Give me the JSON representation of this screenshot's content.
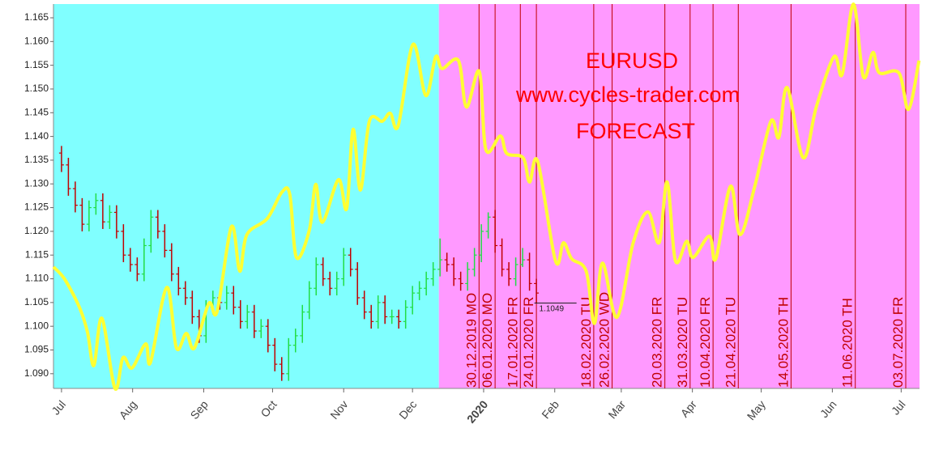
{
  "chart_data": {
    "type": "candlestick",
    "annotations": [
      "EURUSD",
      "www.cycles-trader.com",
      "FORECAST"
    ],
    "annotation_color": "#ff0000",
    "xlim": [
      -3.5,
      374
    ],
    "ylim": [
      1.0869,
      1.1679
    ],
    "xticks": [
      {
        "value": 0,
        "label": "Jul"
      },
      {
        "value": 31,
        "label": "Aug"
      },
      {
        "value": 62,
        "label": "Sep"
      },
      {
        "value": 92,
        "label": "Oct"
      },
      {
        "value": 123,
        "label": "Nov"
      },
      {
        "value": 153,
        "label": "Dec"
      },
      {
        "value": 184,
        "label": "2020",
        "color": "#8b0000"
      },
      {
        "value": 215,
        "label": "Feb"
      },
      {
        "value": 244,
        "label": "Mar"
      },
      {
        "value": 275,
        "label": "Apr"
      },
      {
        "value": 305,
        "label": "May"
      },
      {
        "value": 336,
        "label": "Jun"
      },
      {
        "value": 366,
        "label": "Jul"
      }
    ],
    "yticks": [
      {
        "value": 1.09,
        "label": "1.090"
      },
      1.095,
      {
        "value": 1.1,
        "label": "1.100"
      },
      1.105,
      {
        "value": 1.11,
        "label": "1.110"
      },
      1.115,
      {
        "value": 1.12,
        "label": "1.120"
      },
      1.125,
      {
        "value": 1.13,
        "label": "1.130"
      },
      1.135,
      {
        "value": 1.14,
        "label": "1.140"
      },
      1.145,
      {
        "value": 1.15,
        "label": "1.150"
      },
      1.155,
      {
        "value": 1.16,
        "label": "1.160"
      },
      1.165
    ],
    "regions": [
      {
        "from": -3.5,
        "to": 164.5,
        "color": "#80ffff"
      },
      {
        "from": 164.5,
        "to": 374,
        "color": "#ff99ff"
      }
    ],
    "up_color": "#22dd44",
    "down_color": "#c00000",
    "bars": {
      "x": [
        0,
        3,
        6,
        9,
        12,
        15,
        18,
        21,
        24,
        27,
        30,
        33,
        36,
        39,
        42,
        45,
        48,
        51,
        54,
        57,
        60,
        63,
        66,
        69,
        72,
        75,
        78,
        81,
        84,
        87,
        90,
        93,
        96,
        99,
        102,
        105,
        108,
        111,
        114,
        117,
        120,
        123,
        126,
        129,
        132,
        135,
        138,
        141,
        144,
        147,
        150,
        153,
        156,
        159,
        162,
        165,
        168,
        171,
        174,
        177,
        180,
        183,
        186,
        189,
        192,
        195,
        198,
        201,
        204,
        207
      ],
      "open": [
        1.1365,
        1.134,
        1.129,
        1.1255,
        1.1215,
        1.125,
        1.1265,
        1.122,
        1.124,
        1.12,
        1.115,
        1.113,
        1.111,
        1.117,
        1.123,
        1.12,
        1.116,
        1.111,
        1.108,
        1.106,
        1.102,
        1.098,
        1.104,
        1.106,
        1.105,
        1.107,
        1.104,
        1.101,
        1.103,
        1.099,
        1.1,
        1.096,
        1.092,
        1.09,
        1.096,
        1.098,
        1.103,
        1.108,
        1.113,
        1.11,
        1.108,
        1.11,
        1.115,
        1.112,
        1.106,
        1.103,
        1.101,
        1.105,
        1.102,
        1.102,
        1.101,
        1.104,
        1.107,
        1.108,
        1.11,
        1.112,
        1.114,
        1.113,
        1.11,
        1.109,
        1.112,
        1.115,
        1.12,
        1.123,
        1.117,
        1.112,
        1.11,
        1.113,
        1.114,
        1.109
      ],
      "high": [
        1.138,
        1.1355,
        1.1305,
        1.127,
        1.1265,
        1.128,
        1.128,
        1.1255,
        1.1255,
        1.1215,
        1.1165,
        1.1145,
        1.1185,
        1.1245,
        1.1245,
        1.1215,
        1.1175,
        1.1125,
        1.1095,
        1.1075,
        1.1035,
        1.1055,
        1.1075,
        1.1075,
        1.1085,
        1.1085,
        1.1055,
        1.1045,
        1.1045,
        1.1015,
        1.1015,
        1.0975,
        1.0935,
        1.0975,
        1.0995,
        1.1045,
        1.1095,
        1.1145,
        1.1145,
        1.1115,
        1.1115,
        1.1165,
        1.1165,
        1.1135,
        1.1075,
        1.1045,
        1.1065,
        1.1065,
        1.1035,
        1.1035,
        1.1055,
        1.1085,
        1.1095,
        1.1115,
        1.1135,
        1.1185,
        1.1155,
        1.1145,
        1.1115,
        1.1135,
        1.1165,
        1.1215,
        1.124,
        1.1245,
        1.1185,
        1.1135,
        1.1145,
        1.1165,
        1.1155,
        1.11
      ],
      "low": [
        1.1325,
        1.1275,
        1.124,
        1.12,
        1.12,
        1.1235,
        1.1205,
        1.1205,
        1.1185,
        1.1135,
        1.1115,
        1.1095,
        1.1095,
        1.1155,
        1.1185,
        1.1145,
        1.1095,
        1.1065,
        1.1045,
        1.1005,
        1.0965,
        1.0965,
        1.1025,
        1.1035,
        1.1035,
        1.1025,
        1.0995,
        1.0995,
        1.0975,
        1.0975,
        1.0945,
        1.0905,
        1.0885,
        1.0885,
        1.0945,
        1.0965,
        1.1015,
        1.1065,
        1.1085,
        1.1065,
        1.1065,
        1.1085,
        1.1105,
        1.1045,
        1.1015,
        1.0995,
        1.0995,
        1.1005,
        1.1005,
        1.0995,
        1.0995,
        1.1025,
        1.1055,
        1.1065,
        1.1085,
        1.1105,
        1.1115,
        1.1085,
        1.1075,
        1.1075,
        1.1105,
        1.1135,
        1.1185,
        1.1155,
        1.1105,
        1.1085,
        1.1085,
        1.1125,
        1.1075,
        1.1049
      ],
      "close": [
        1.134,
        1.129,
        1.1255,
        1.1215,
        1.125,
        1.1265,
        1.122,
        1.124,
        1.12,
        1.115,
        1.113,
        1.111,
        1.117,
        1.123,
        1.12,
        1.116,
        1.111,
        1.108,
        1.106,
        1.102,
        1.098,
        1.104,
        1.106,
        1.105,
        1.107,
        1.104,
        1.101,
        1.103,
        1.099,
        1.1,
        1.096,
        1.092,
        1.09,
        1.096,
        1.098,
        1.103,
        1.108,
        1.113,
        1.11,
        1.108,
        1.11,
        1.115,
        1.112,
        1.106,
        1.103,
        1.101,
        1.105,
        1.102,
        1.102,
        1.101,
        1.104,
        1.107,
        1.108,
        1.11,
        1.112,
        1.114,
        1.113,
        1.11,
        1.109,
        1.112,
        1.115,
        1.12,
        1.123,
        1.117,
        1.112,
        1.11,
        1.113,
        1.114,
        1.109,
        1.107
      ]
    },
    "forecast": {
      "color": "#ffff33",
      "x": [
        -3.5,
        1.4,
        7.8,
        11.3,
        14.1,
        17.6,
        23.3,
        26.8,
        30.7,
        36.7,
        38.8,
        45.9,
        50.1,
        54.4,
        57.9,
        64.2,
        67.8,
        74.1,
        77.7,
        80.8,
        89.7,
        96.0,
        99.5,
        102.4,
        108.0,
        110.8,
        113.7,
        120.7,
        124.3,
        127.1,
        130.3,
        134.2,
        139.8,
        143.3,
        146.8,
        153.2,
        158.8,
        163.1,
        165.9,
        173.0,
        176.5,
        182.1,
        185.0,
        191.3,
        194.1,
        201.2,
        204.0,
        207.6,
        215.3,
        218.8,
        222.4,
        228.7,
        232.3,
        235.8,
        242.1,
        249.2,
        255.6,
        260.5,
        264.0,
        267.6,
        272.5,
        275.3,
        282.4,
        285.2,
        291.6,
        295.8,
        302.2,
        309.2,
        312.7,
        316.3,
        323.3,
        329.0,
        336.7,
        340.3,
        345.2,
        349.5,
        353.7,
        356.5,
        365.0,
        369.2,
        373.8
      ],
      "values": [
        1.1125,
        1.1099,
        1.104,
        1.0988,
        1.0917,
        1.1017,
        1.0869,
        1.0934,
        1.0912,
        1.0963,
        1.0924,
        1.1082,
        1.0954,
        1.0985,
        1.0954,
        1.1048,
        1.1031,
        1.121,
        1.1116,
        1.1193,
        1.1227,
        1.1282,
        1.1278,
        1.1145,
        1.1202,
        1.1299,
        1.1219,
        1.1309,
        1.1248,
        1.1415,
        1.1287,
        1.1432,
        1.1432,
        1.1449,
        1.1423,
        1.1594,
        1.1486,
        1.1568,
        1.1543,
        1.156,
        1.1462,
        1.1537,
        1.1372,
        1.1401,
        1.1364,
        1.1355,
        1.1304,
        1.1347,
        1.1138,
        1.1176,
        1.1142,
        1.1116,
        1.1006,
        1.1133,
        1.1019,
        1.1176,
        1.1241,
        1.1176,
        1.1304,
        1.1138,
        1.1179,
        1.1145,
        1.119,
        1.1142,
        1.1295,
        1.1193,
        1.1295,
        1.1432,
        1.1398,
        1.1503,
        1.1355,
        1.1462,
        1.1568,
        1.1531,
        1.1679,
        1.1526,
        1.1577,
        1.1534,
        1.1534,
        1.1457,
        1.156
      ]
    },
    "events": {
      "color": "#c00000",
      "x": [
        182,
        189,
        200,
        207,
        232,
        240,
        263,
        274,
        284,
        295,
        318,
        346,
        368
      ],
      "labels": [
        "30.12.2019 MO",
        "06.01.2020 MO",
        "17.01.2020 FR",
        "24.01.2020 FR",
        "18.02.2020 TU",
        "26.02.2020 WD",
        "20.03.2020 FR",
        "31.03.2020 TU",
        "10.04.2020 FR",
        "21.04.2020 TU",
        "14.05.2020 TH",
        "11.06.2020 TH",
        "03.07.2020 FR"
      ]
    },
    "level": {
      "value": 1.1049,
      "x": [
        206.1,
        224.5
      ]
    }
  }
}
